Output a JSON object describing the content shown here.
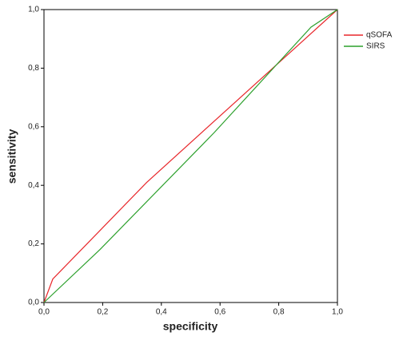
{
  "chart_data": {
    "type": "line",
    "xlabel": "specificity",
    "ylabel": "sensitivity",
    "xlim": [
      0,
      1
    ],
    "ylim": [
      0,
      1
    ],
    "xticks": [
      {
        "value": 0,
        "label": "0,0"
      },
      {
        "value": 0.2,
        "label": "0,2"
      },
      {
        "value": 0.4,
        "label": "0,4"
      },
      {
        "value": 0.6,
        "label": "0,6"
      },
      {
        "value": 0.8,
        "label": "0,8"
      },
      {
        "value": 1,
        "label": "1,0"
      }
    ],
    "yticks": [
      {
        "value": 0,
        "label": "0,0"
      },
      {
        "value": 0.2,
        "label": "0,2"
      },
      {
        "value": 0.4,
        "label": "0,4"
      },
      {
        "value": 0.6,
        "label": "0,6"
      },
      {
        "value": 0.8,
        "label": "0,8"
      },
      {
        "value": 1,
        "label": "1,0"
      }
    ],
    "legend": "upper right",
    "series": [
      {
        "name": "qSOFA",
        "color": "#e8262a",
        "x": [
          0,
          0.03,
          0.35,
          1
        ],
        "values": [
          0,
          0.08,
          0.41,
          1
        ]
      },
      {
        "name": "SIRS",
        "color": "#2ca02c",
        "x": [
          0,
          0.19,
          0.58,
          0.91,
          1
        ],
        "values": [
          0,
          0.18,
          0.58,
          0.94,
          1
        ]
      }
    ]
  }
}
